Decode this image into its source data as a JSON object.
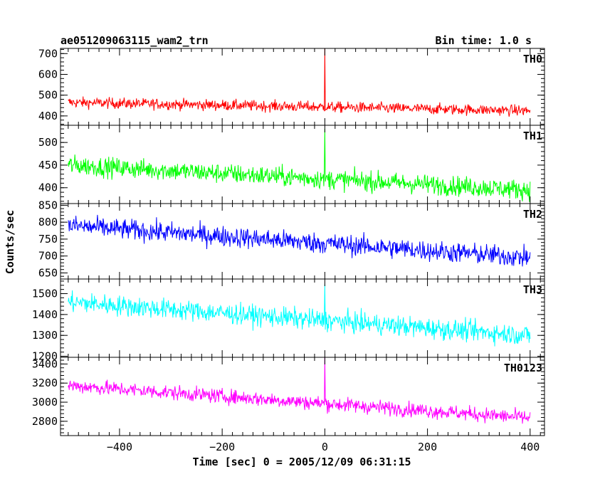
{
  "title_left": "ae051209063115_wam2_trn",
  "title_right": "Bin time: 1.0 s",
  "ylabel": "Counts/sec",
  "xlabel": "Time [sec] 0 = 2005/12/09 06:31:15",
  "chart_data": {
    "type": "line",
    "x_range": [
      -500,
      400
    ],
    "xlim": [
      -515,
      428
    ],
    "x_ticks": [
      -400,
      -200,
      0,
      200,
      400
    ],
    "x_tick_labels": [
      "−400",
      "−200",
      "0",
      "200",
      "400"
    ],
    "bin_time_s": 1.0,
    "spike_x": 0,
    "panels": [
      {
        "name": "TH0",
        "color": "#ff0000",
        "ylim": [
          355,
          725
        ],
        "y_ticks": [
          400,
          500,
          600,
          700
        ],
        "y_tick_labels": [
          "400",
          "500",
          "600",
          "700"
        ],
        "trend": {
          "start": 465,
          "end": 425
        },
        "noise": 24,
        "spike_top": 725
      },
      {
        "name": "TH1",
        "color": "#00ff00",
        "ylim": [
          365,
          538
        ],
        "y_ticks": [
          400,
          450,
          500
        ],
        "y_tick_labels": [
          "400",
          "450",
          "500"
        ],
        "trend": {
          "start": 450,
          "end": 395
        },
        "noise": 20,
        "spike_top": 530
      },
      {
        "name": "TH2",
        "color": "#0000ff",
        "ylim": [
          632,
          855
        ],
        "y_ticks": [
          650,
          700,
          750,
          800,
          850
        ],
        "y_tick_labels": [
          "650",
          "700",
          "750",
          "800",
          "850"
        ],
        "trend": {
          "start": 790,
          "end": 695
        },
        "noise": 28,
        "spike_top": null
      },
      {
        "name": "TH3",
        "color": "#00ffff",
        "ylim": [
          1195,
          1570
        ],
        "y_ticks": [
          1200,
          1300,
          1400,
          1500
        ],
        "y_tick_labels": [
          "1200",
          "1300",
          "1400",
          "1500"
        ],
        "trend": {
          "start": 1460,
          "end": 1300
        },
        "noise": 45,
        "spike_top": 1545
      },
      {
        "name": "TH0123",
        "color": "#ff00ff",
        "ylim": [
          2650,
          3470
        ],
        "y_ticks": [
          2800,
          3000,
          3200,
          3400
        ],
        "y_tick_labels": [
          "2800",
          "3000",
          "3200",
          "3400"
        ],
        "trend": {
          "start": 3175,
          "end": 2835
        },
        "noise": 70,
        "spike_top": 3470
      }
    ]
  }
}
